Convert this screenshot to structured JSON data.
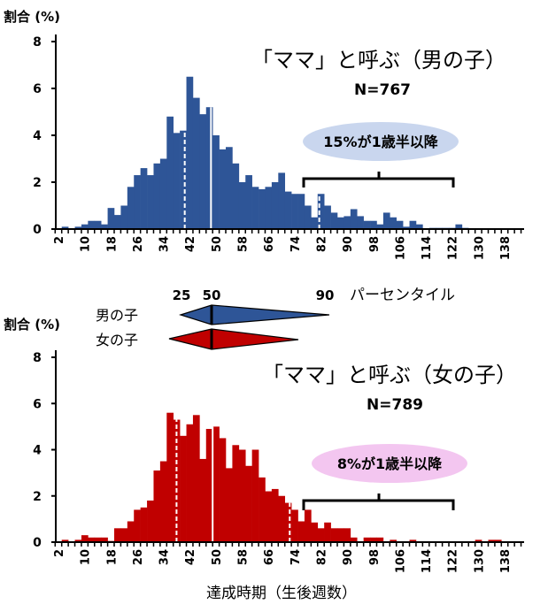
{
  "legend": {
    "p25": "25",
    "p50": "50",
    "p90": "90",
    "percentile_label": "パーセンタイル",
    "boys": "男の子",
    "girls": "女の子"
  },
  "colors": {
    "boys": "#2e5597",
    "girls": "#c00000",
    "boys_cloud": "#c9d6ee",
    "girls_cloud": "#f3c6f0"
  },
  "chart_data": [
    {
      "type": "bar",
      "title": "「ママ」と呼ぶ（男の子）",
      "n_label": "N=767",
      "ylabel": "割合 (%)",
      "xlabel": "",
      "ylim": [
        0,
        8
      ],
      "yticks": [
        "0",
        "2",
        "4",
        "6",
        "8"
      ],
      "xticks": [
        "2",
        "10",
        "18",
        "26",
        "34",
        "42",
        "50",
        "58",
        "66",
        "74",
        "82",
        "90",
        "98",
        "106",
        "114",
        "122",
        "130",
        "138"
      ],
      "bin_start": 2,
      "bin_width": 2,
      "values": [
        0,
        0.1,
        0,
        0.1,
        0.2,
        0.35,
        0.35,
        0.2,
        0.9,
        0.6,
        1.0,
        1.8,
        2.3,
        2.6,
        2.3,
        2.8,
        3.0,
        4.8,
        4.1,
        4.2,
        6.5,
        5.6,
        4.9,
        5.2,
        4.0,
        3.4,
        3.5,
        2.8,
        2.0,
        2.3,
        1.8,
        1.7,
        1.8,
        2.0,
        2.4,
        1.6,
        1.5,
        1.5,
        1.0,
        0.5,
        1.5,
        1.0,
        0.7,
        0.5,
        0.55,
        0.85,
        0.55,
        0.35,
        0.35,
        0.2,
        0.7,
        0.5,
        0.35,
        0.1,
        0.35,
        0.2,
        0,
        0.05,
        0.05,
        0.05,
        0.05,
        0.2,
        0.05,
        0,
        0,
        0,
        0,
        0,
        0
      ],
      "percentiles": {
        "p25": 40.5,
        "p50": 48.5,
        "p90": 81.5
      },
      "annotation": "15%が1歳半以降",
      "bracket_range": [
        77,
        122
      ]
    },
    {
      "type": "bar",
      "title": "「ママ」と呼ぶ（女の子）",
      "n_label": "N=789",
      "ylabel": "割合 (%)",
      "xlabel": "達成時期（生後週数）",
      "ylim": [
        0,
        8
      ],
      "yticks": [
        "0",
        "2",
        "4",
        "6",
        "8"
      ],
      "xticks": [
        "2",
        "10",
        "18",
        "26",
        "34",
        "42",
        "50",
        "58",
        "66",
        "74",
        "82",
        "90",
        "98",
        "106",
        "114",
        "122",
        "130",
        "138"
      ],
      "bin_start": 2,
      "bin_width": 2,
      "values": [
        0,
        0.1,
        0,
        0.1,
        0.3,
        0.2,
        0.2,
        0.2,
        0.05,
        0.6,
        0.6,
        0.9,
        1.4,
        1.5,
        1.8,
        3.1,
        3.5,
        5.6,
        5.3,
        4.6,
        5.1,
        5.5,
        3.6,
        4.9,
        5.0,
        4.5,
        3.2,
        4.2,
        4.0,
        3.3,
        4.0,
        2.8,
        2.2,
        2.3,
        2.0,
        1.7,
        1.4,
        0.9,
        1.4,
        0.85,
        0.6,
        0.85,
        0.6,
        0.6,
        0.6,
        0.2,
        0,
        0.2,
        0.2,
        0.2,
        0,
        0.1,
        0,
        0,
        0.1,
        0,
        0,
        0,
        0,
        0,
        0,
        0,
        0,
        0,
        0.1,
        0,
        0.1,
        0.1,
        0
      ],
      "percentiles": {
        "p25": 38,
        "p50": 49,
        "p90": 72.5
      },
      "annotation": "8%が1歳半以降",
      "bracket_range": [
        77,
        122
      ]
    }
  ]
}
